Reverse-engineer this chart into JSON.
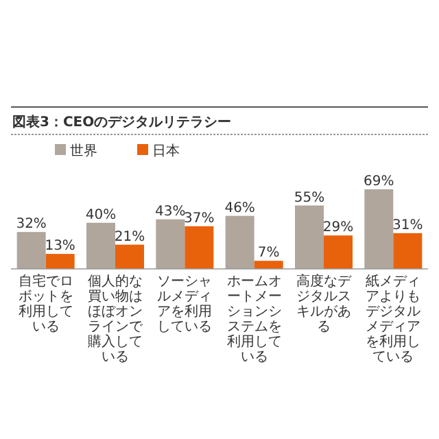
{
  "chart_data": {
    "type": "bar",
    "title": "図表3：CEOのデジタルリテラシー",
    "categories": [
      "自宅でロボットを利用している",
      "個人的な買い物はほぼオンラインで購入している",
      "ソーシャルメディアを利用している",
      "ホームオートメーションシステムを利用している",
      "高度なデジタルスキルがある",
      "紙メディアよりもデジタルメディアを利用している"
    ],
    "series": [
      {
        "name": "世界",
        "color": "#b0a69c",
        "values": [
          32,
          40,
          43,
          46,
          55,
          69
        ],
        "value_labels": [
          "32%",
          "40%",
          "43%",
          "46%",
          "55%",
          "69%"
        ]
      },
      {
        "name": "日本",
        "color": "#e8620c",
        "values": [
          13,
          21,
          37,
          7,
          29,
          31
        ],
        "value_labels": [
          "13%",
          "21%",
          "37%",
          "7%",
          "29%",
          "31%"
        ]
      }
    ],
    "legend": "top left"
  }
}
